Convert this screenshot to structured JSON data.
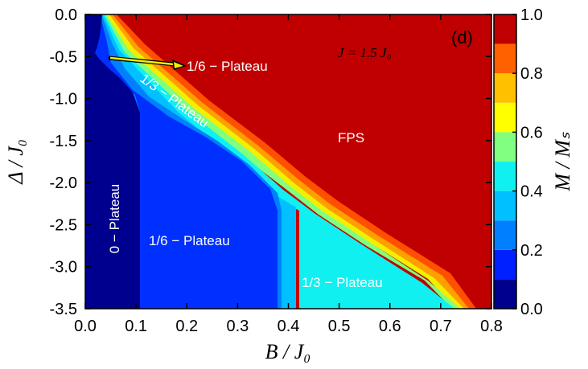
{
  "chart_data": {
    "type": "heatmap",
    "title": "",
    "xlabel": "B / J₀",
    "ylabel": "Δ / J₀",
    "colorbar_label": "M / Mₛ",
    "xlim": [
      0.0,
      0.8
    ],
    "ylim": [
      -3.5,
      0.0
    ],
    "x_ticks": [
      "0.0",
      "0.1",
      "0.2",
      "0.3",
      "0.4",
      "0.5",
      "0.6",
      "0.7",
      "0.8"
    ],
    "y_ticks": [
      "0.0",
      "-0.5",
      "-1.0",
      "-1.5",
      "-2.0",
      "-2.5",
      "-3.0",
      "-3.5"
    ],
    "colorbar_range": [
      0.0,
      1.0
    ],
    "colorbar_ticks": [
      "0.0",
      "0.2",
      "0.4",
      "0.6",
      "0.8",
      "1.0"
    ],
    "colorbar_levels": [
      {
        "from": 0.0,
        "to": 0.1,
        "color": "#00008f"
      },
      {
        "from": 0.1,
        "to": 0.2,
        "color": "#0020ff"
      },
      {
        "from": 0.2,
        "to": 0.3,
        "color": "#0080ff"
      },
      {
        "from": 0.3,
        "to": 0.4,
        "color": "#00c0ff"
      },
      {
        "from": 0.4,
        "to": 0.5,
        "color": "#10f0f0"
      },
      {
        "from": 0.5,
        "to": 0.6,
        "color": "#80ff80"
      },
      {
        "from": 0.6,
        "to": 0.7,
        "color": "#ffff00"
      },
      {
        "from": 0.7,
        "to": 0.8,
        "color": "#ffc000"
      },
      {
        "from": 0.8,
        "to": 0.9,
        "color": "#ff6000"
      },
      {
        "from": 0.9,
        "to": 1.0,
        "color": "#c00000"
      }
    ],
    "regions": [
      {
        "label": "0 − Plateau",
        "magnetization": 0.0,
        "boundary": [
          [
            0.0,
            0.0
          ],
          [
            0.03,
            0.0
          ],
          [
            0.05,
            -0.2
          ],
          [
            0.09,
            -0.5
          ],
          [
            0.11,
            -0.75
          ],
          [
            0.11,
            -3.5
          ],
          [
            0.0,
            -3.5
          ]
        ]
      },
      {
        "label": "1/6 − Plateau",
        "magnetization": 0.1667,
        "boundary": [
          [
            0.03,
            0.0
          ],
          [
            0.12,
            -0.4
          ],
          [
            0.16,
            -1.0
          ],
          [
            0.25,
            -1.5
          ],
          [
            0.35,
            -1.85
          ],
          [
            0.385,
            -2.15
          ],
          [
            0.385,
            -3.5
          ],
          [
            0.11,
            -3.5
          ],
          [
            0.11,
            -0.75
          ],
          [
            0.09,
            -0.5
          ]
        ]
      },
      {
        "label": "1/3 − Plateau",
        "magnetization": 0.3333,
        "boundary": [
          [
            0.12,
            -0.4
          ],
          [
            0.15,
            -0.6
          ],
          [
            0.22,
            -1.1
          ],
          [
            0.3,
            -1.55
          ],
          [
            0.38,
            -1.95
          ],
          [
            0.4,
            -2.05
          ],
          [
            0.74,
            -3.5
          ],
          [
            0.425,
            -3.5
          ],
          [
            0.425,
            -2.3
          ],
          [
            0.385,
            -2.15
          ],
          [
            0.35,
            -1.85
          ],
          [
            0.25,
            -1.5
          ],
          [
            0.16,
            -1.0
          ]
        ]
      },
      {
        "label": "FPS",
        "magnetization": 1.0,
        "boundary": [
          [
            0.04,
            0.0
          ],
          [
            0.8,
            0.0
          ],
          [
            0.8,
            -3.5
          ],
          [
            0.76,
            -3.5
          ]
        ]
      }
    ],
    "annotations": [
      {
        "text": "1/6 − Plateau",
        "x": 0.2,
        "y": -0.65,
        "arrow_to": [
          0.045,
          -0.5
        ]
      },
      {
        "text": "1/3 − Plateau",
        "x": 0.165,
        "y": -1.0,
        "rotation": "along boundary"
      },
      {
        "text": "J = 1.5 J₀",
        "x": 0.55,
        "y": -0.45
      },
      {
        "text": "FPS",
        "x": 0.52,
        "y": -1.5
      },
      {
        "text": "1/6 − Plateau",
        "x": 0.22,
        "y": -2.65
      },
      {
        "text": "1/3 − Plateau",
        "x": 0.55,
        "y": -3.15
      },
      {
        "text": "0 − Plateau",
        "x": 0.05,
        "y": -2.7,
        "rotation": "vertical"
      },
      {
        "text": "(d)",
        "x": 0.74,
        "y": -0.3
      }
    ]
  }
}
